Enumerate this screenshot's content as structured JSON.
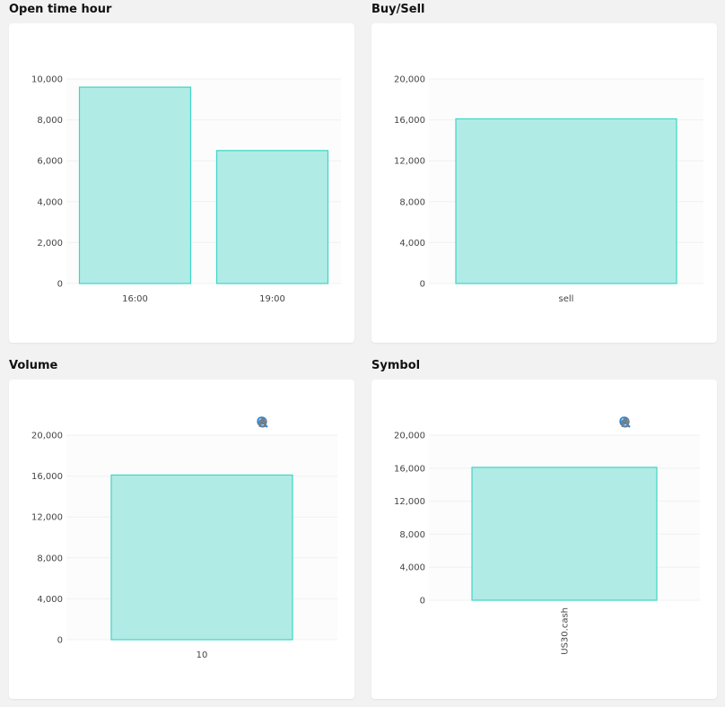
{
  "colors": {
    "bar_fill": "#b1ebe5",
    "bar_stroke": "#3fd6c6",
    "grid": "#f0f0f0",
    "plot_bg": "#fcfcfc",
    "zoom_accent": "#1e88e5",
    "toolbar_icon": "#6e8192"
  },
  "toolbar_icons": [
    "zoom-in-icon",
    "zoom-out-icon",
    "magnify-icon",
    "pan-hand-icon",
    "home-icon"
  ],
  "chart_data": [
    {
      "title": "Open time hour",
      "type": "bar",
      "categories": [
        "16:00",
        "19:00"
      ],
      "values": [
        9600,
        6500
      ],
      "ylim": [
        0,
        10000
      ],
      "yticks": [
        "0",
        "2,000",
        "4,000",
        "6,000",
        "8,000",
        "10,000"
      ],
      "grid": true,
      "xlabel": "",
      "ylabel": ""
    },
    {
      "title": "Buy/Sell",
      "type": "bar",
      "categories": [
        "sell"
      ],
      "values": [
        16100
      ],
      "ylim": [
        0,
        20000
      ],
      "yticks": [
        "0",
        "4,000",
        "8,000",
        "12,000",
        "16,000",
        "20,000"
      ],
      "grid": true,
      "xlabel": "",
      "ylabel": ""
    },
    {
      "title": "Volume",
      "type": "bar",
      "categories": [
        "10"
      ],
      "values": [
        16100
      ],
      "ylim": [
        0,
        20000
      ],
      "yticks": [
        "0",
        "4,000",
        "8,000",
        "12,000",
        "16,000",
        "20,000"
      ],
      "grid": true,
      "xlabel": "",
      "ylabel": ""
    },
    {
      "title": "Symbol",
      "type": "bar",
      "categories": [
        "US30.cash"
      ],
      "values": [
        16100
      ],
      "ylim": [
        0,
        20000
      ],
      "yticks": [
        "0",
        "4,000",
        "8,000",
        "12,000",
        "16,000",
        "20,000"
      ],
      "grid": true,
      "xlabel": "",
      "ylabel": ""
    }
  ]
}
